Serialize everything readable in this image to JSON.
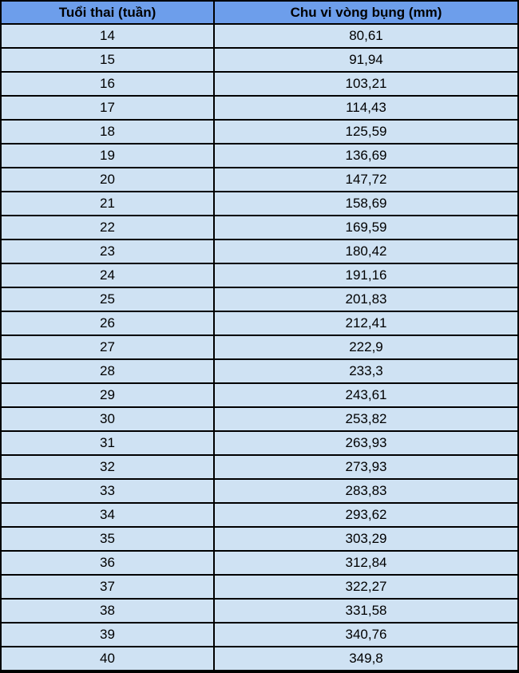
{
  "table": {
    "headers": [
      "Tuổi thai (tuần)",
      "Chu vi vòng bụng (mm)"
    ],
    "rows": [
      [
        "14",
        "80,61"
      ],
      [
        "15",
        "91,94"
      ],
      [
        "16",
        "103,21"
      ],
      [
        "17",
        "114,43"
      ],
      [
        "18",
        "125,59"
      ],
      [
        "19",
        "136,69"
      ],
      [
        "20",
        "147,72"
      ],
      [
        "21",
        "158,69"
      ],
      [
        "22",
        "169,59"
      ],
      [
        "23",
        "180,42"
      ],
      [
        "24",
        "191,16"
      ],
      [
        "25",
        "201,83"
      ],
      [
        "26",
        "212,41"
      ],
      [
        "27",
        "222,9"
      ],
      [
        "28",
        "233,3"
      ],
      [
        "29",
        "243,61"
      ],
      [
        "30",
        "253,82"
      ],
      [
        "31",
        "263,93"
      ],
      [
        "32",
        "273,93"
      ],
      [
        "33",
        "283,83"
      ],
      [
        "34",
        "293,62"
      ],
      [
        "35",
        "303,29"
      ],
      [
        "36",
        "312,84"
      ],
      [
        "37",
        "322,27"
      ],
      [
        "38",
        "331,58"
      ],
      [
        "39",
        "340,76"
      ],
      [
        "40",
        "349,8"
      ]
    ]
  },
  "colors": {
    "header_bg": "#6d9eeb",
    "cell_bg": "#cfe2f3",
    "border": "#000000"
  }
}
